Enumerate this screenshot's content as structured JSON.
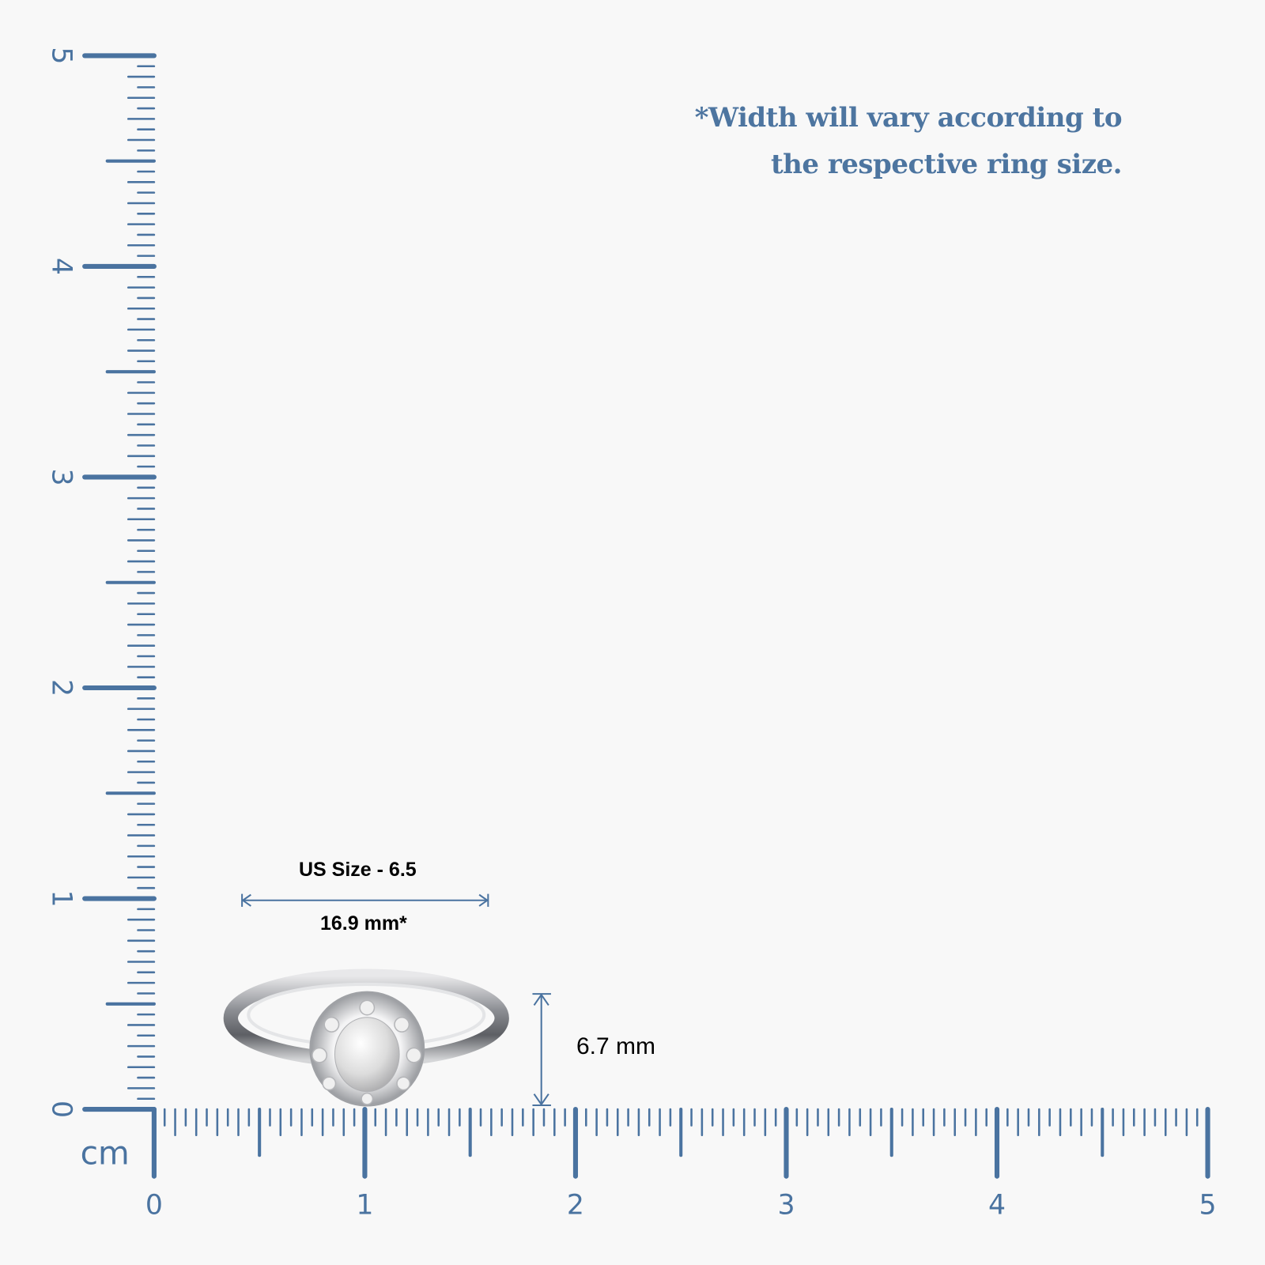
{
  "note": {
    "line1": "*Width will vary according to",
    "line2": "the respective ring size."
  },
  "ruler": {
    "unit": "cm",
    "x_labels": [
      "0",
      "1",
      "2",
      "3",
      "4",
      "5"
    ],
    "y_labels": [
      "0",
      "1",
      "2",
      "3",
      "4",
      "5"
    ],
    "color": "#4a73a0"
  },
  "ring": {
    "size_label": "US Size - 6.5",
    "width_label": "16.9 mm*",
    "height_label": "6.7 mm",
    "width_mm": 16.9,
    "height_mm": 6.7
  }
}
